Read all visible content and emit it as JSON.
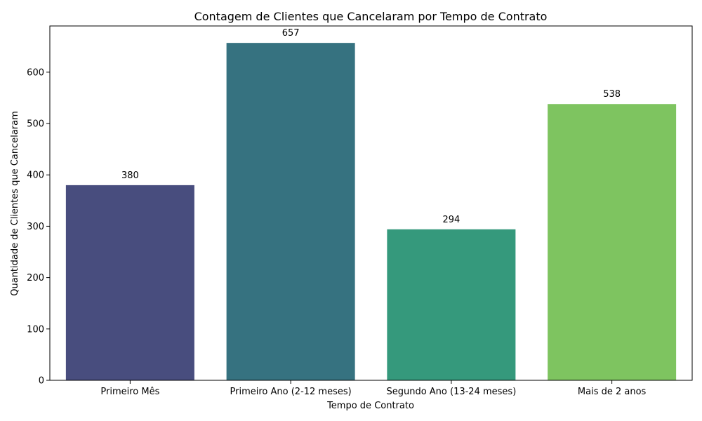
{
  "chart_data": {
    "type": "bar",
    "title": "Contagem de Clientes que Cancelaram por Tempo de Contrato",
    "xlabel": "Tempo de Contrato",
    "ylabel": "Quantidade de Clientes que Cancelaram",
    "categories": [
      "Primeiro Mês",
      "Primeiro Ano (2-12 meses)",
      "Segundo Ano (13-24 meses)",
      "Mais de 2 anos"
    ],
    "values": [
      380,
      657,
      294,
      538
    ],
    "colors": [
      "#484d7e",
      "#367280",
      "#35997c",
      "#7ec460"
    ],
    "ylim": [
      0,
      690
    ],
    "yticks": [
      0,
      100,
      200,
      300,
      400,
      500,
      600
    ],
    "grid": false,
    "legend": false
  }
}
